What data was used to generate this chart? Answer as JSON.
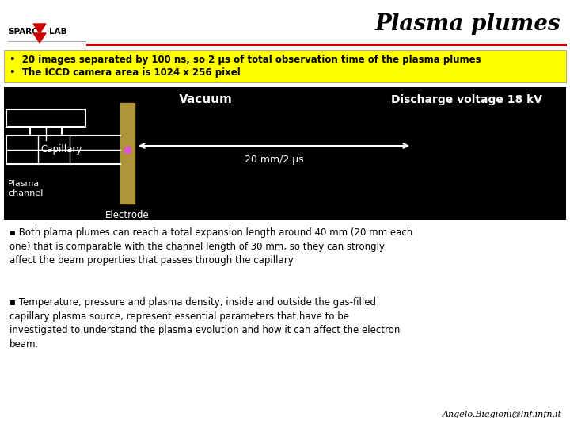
{
  "title": "Plasma plumes",
  "header_line_color": "#cc0000",
  "bullet_box_color": "#ffff00",
  "bullet_box_text1": "•  20 images separated by 100 ns, so 2 μs of total observation time of the plasma plumes",
  "bullet_box_text2": "•  The ICCD camera area is 1024 x 256 pixel",
  "diagram_bg": "#000000",
  "diagram_label_vacuum": "Vacuum",
  "diagram_label_discharge": "Discharge voltage 18 kV",
  "diagram_label_capillary": "Capillary",
  "diagram_label_plasma": "Plasma\nchannel",
  "diagram_label_electrode": "Electrode",
  "diagram_label_scale": "20 mm/2 μs",
  "body_bullet1_text": "Both plama plumes can reach a total expansion length around 40 mm (20 mm each\none) that is comparable with the channel length of 30 mm, so they can strongly\naffect the beam properties that passes through the capillary",
  "body_bullet2_text": "Temperature, pressure and plasma density, inside and outside the gas-filled\ncapillary plasma source, represent essential parameters that have to be\ninvestigated to understand the plasma evolution and how it can affect the electron\nbeam.",
  "email": "Angelo.Biagioni@lnf.infn.it",
  "bg_color": "#ffffff",
  "sparc_color": "#000000",
  "lab_color": "#000000",
  "logo_red": "#cc0000"
}
